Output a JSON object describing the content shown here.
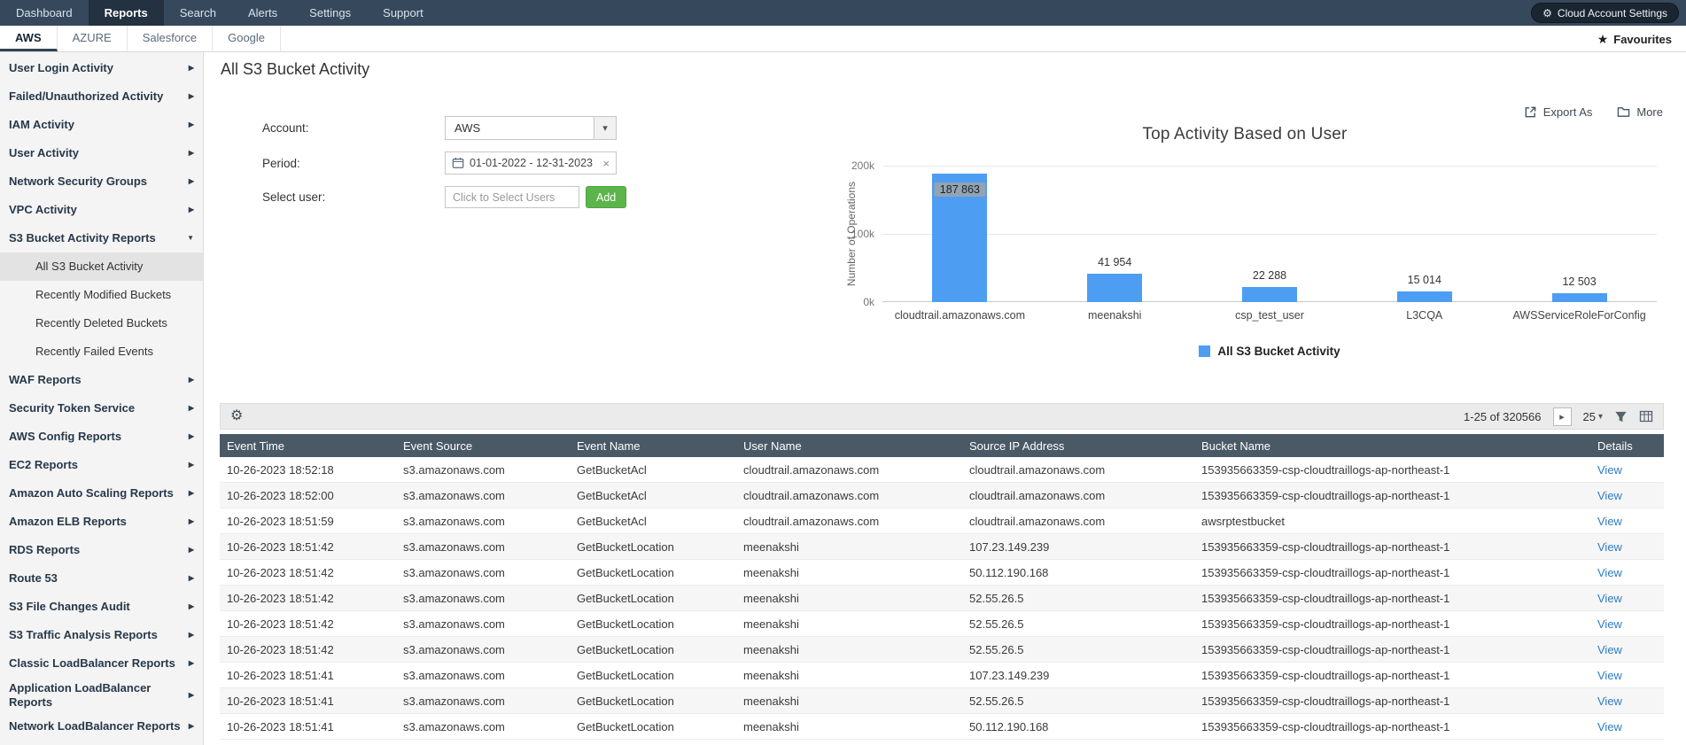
{
  "icons": {
    "gear": "⚙",
    "star": "★",
    "chevron_right": "▶",
    "chevron_down": "▼",
    "caret_down": "▾",
    "next_page": "▸",
    "close": "×"
  },
  "colors": {
    "topnav_bg": "#36495c",
    "topnav_active_bg": "#233140",
    "table_header_bg": "#4a5966",
    "bar_blue": "#4d9df3",
    "add_button_green": "#5cb54b",
    "link_blue": "#2e7cc4",
    "sidebar_bg": "#f4f4f4",
    "selected_item_bg": "#e3e3e3"
  },
  "topnav": {
    "items": [
      {
        "label": "Dashboard",
        "active": false
      },
      {
        "label": "Reports",
        "active": true
      },
      {
        "label": "Search",
        "active": false
      },
      {
        "label": "Alerts",
        "active": false
      },
      {
        "label": "Settings",
        "active": false
      },
      {
        "label": "Support",
        "active": false
      }
    ],
    "settings_label": "Cloud Account Settings"
  },
  "subnav": {
    "tabs": [
      "AWS",
      "AZURE",
      "Salesforce",
      "Google"
    ],
    "active": "AWS",
    "favourites_label": "Favourites"
  },
  "sidebar": {
    "items": [
      {
        "label": "User Login Activity",
        "type": "group"
      },
      {
        "label": "Failed/Unauthorized Activity",
        "type": "group"
      },
      {
        "label": "IAM Activity",
        "type": "group"
      },
      {
        "label": "User Activity",
        "type": "group"
      },
      {
        "label": "Network Security Groups",
        "type": "group"
      },
      {
        "label": "VPC Activity",
        "type": "group"
      },
      {
        "label": "S3 Bucket Activity Reports",
        "type": "group",
        "expanded": true
      },
      {
        "label": "All S3 Bucket Activity",
        "type": "child",
        "selected": true
      },
      {
        "label": "Recently Modified Buckets",
        "type": "child"
      },
      {
        "label": "Recently Deleted Buckets",
        "type": "child"
      },
      {
        "label": "Recently Failed Events",
        "type": "child"
      },
      {
        "label": "WAF Reports",
        "type": "group"
      },
      {
        "label": "Security Token Service",
        "type": "group"
      },
      {
        "label": "AWS Config Reports",
        "type": "group"
      },
      {
        "label": "EC2 Reports",
        "type": "group"
      },
      {
        "label": "Amazon Auto Scaling Reports",
        "type": "group"
      },
      {
        "label": "Amazon ELB Reports",
        "type": "group"
      },
      {
        "label": "RDS Reports",
        "type": "group"
      },
      {
        "label": "Route 53",
        "type": "group"
      },
      {
        "label": "S3 File Changes Audit",
        "type": "group"
      },
      {
        "label": "S3 Traffic Analysis Reports",
        "type": "group"
      },
      {
        "label": "Classic LoadBalancer Reports",
        "type": "group"
      },
      {
        "label": "Application LoadBalancer Reports",
        "type": "group"
      },
      {
        "label": "Network LoadBalancer Reports",
        "type": "group"
      }
    ]
  },
  "page": {
    "title": "All S3 Bucket Activity"
  },
  "form": {
    "account_label": "Account:",
    "account_value": "AWS",
    "period_label": "Period:",
    "period_value": "01-01-2022 - 12-31-2023",
    "select_user_label": "Select user:",
    "select_user_placeholder": "Click to Select Users",
    "add_button": "Add"
  },
  "actions": {
    "export_label": "Export As",
    "more_label": "More"
  },
  "chart_data": {
    "type": "bar",
    "title": "Top Activity Based on User",
    "ylabel": "Number of Operations",
    "xlabel": "",
    "categories": [
      "cloudtrail.amazonaws.com",
      "meenakshi",
      "csp_test_user",
      "L3CQA",
      "AWSServiceRoleForConfig"
    ],
    "values": [
      187863,
      41954,
      22288,
      15014,
      12503
    ],
    "value_labels": [
      "187 863",
      "41 954",
      "22 288",
      "15 014",
      "12 503"
    ],
    "ylim": [
      0,
      200000
    ],
    "yticks": [
      "0k",
      "100k",
      "200k"
    ],
    "grid": true,
    "legend": [
      "All S3 Bucket Activity"
    ],
    "legend_position": "bottom",
    "bar_color": "#4d9df3"
  },
  "toolbar": {
    "pagination_range": "1-25 of 320566",
    "page_size": "25"
  },
  "table": {
    "headers": [
      "Event Time",
      "Event Source",
      "Event Name",
      "User Name",
      "Source IP Address",
      "Bucket Name",
      "Details"
    ],
    "rows": [
      [
        "10-26-2023 18:52:18",
        "s3.amazonaws.com",
        "GetBucketAcl",
        "cloudtrail.amazonaws.com",
        "cloudtrail.amazonaws.com",
        "153935663359-csp-cloudtraillogs-ap-northeast-1",
        "View"
      ],
      [
        "10-26-2023 18:52:00",
        "s3.amazonaws.com",
        "GetBucketAcl",
        "cloudtrail.amazonaws.com",
        "cloudtrail.amazonaws.com",
        "153935663359-csp-cloudtraillogs-ap-northeast-1",
        "View"
      ],
      [
        "10-26-2023 18:51:59",
        "s3.amazonaws.com",
        "GetBucketAcl",
        "cloudtrail.amazonaws.com",
        "cloudtrail.amazonaws.com",
        "awsrptestbucket",
        "View"
      ],
      [
        "10-26-2023 18:51:42",
        "s3.amazonaws.com",
        "GetBucketLocation",
        "meenakshi",
        "107.23.149.239",
        "153935663359-csp-cloudtraillogs-ap-northeast-1",
        "View"
      ],
      [
        "10-26-2023 18:51:42",
        "s3.amazonaws.com",
        "GetBucketLocation",
        "meenakshi",
        "50.112.190.168",
        "153935663359-csp-cloudtraillogs-ap-northeast-1",
        "View"
      ],
      [
        "10-26-2023 18:51:42",
        "s3.amazonaws.com",
        "GetBucketLocation",
        "meenakshi",
        "52.55.26.5",
        "153935663359-csp-cloudtraillogs-ap-northeast-1",
        "View"
      ],
      [
        "10-26-2023 18:51:42",
        "s3.amazonaws.com",
        "GetBucketLocation",
        "meenakshi",
        "52.55.26.5",
        "153935663359-csp-cloudtraillogs-ap-northeast-1",
        "View"
      ],
      [
        "10-26-2023 18:51:42",
        "s3.amazonaws.com",
        "GetBucketLocation",
        "meenakshi",
        "52.55.26.5",
        "153935663359-csp-cloudtraillogs-ap-northeast-1",
        "View"
      ],
      [
        "10-26-2023 18:51:41",
        "s3.amazonaws.com",
        "GetBucketLocation",
        "meenakshi",
        "107.23.149.239",
        "153935663359-csp-cloudtraillogs-ap-northeast-1",
        "View"
      ],
      [
        "10-26-2023 18:51:41",
        "s3.amazonaws.com",
        "GetBucketLocation",
        "meenakshi",
        "52.55.26.5",
        "153935663359-csp-cloudtraillogs-ap-northeast-1",
        "View"
      ],
      [
        "10-26-2023 18:51:41",
        "s3.amazonaws.com",
        "GetBucketLocation",
        "meenakshi",
        "50.112.190.168",
        "153935663359-csp-cloudtraillogs-ap-northeast-1",
        "View"
      ]
    ]
  }
}
